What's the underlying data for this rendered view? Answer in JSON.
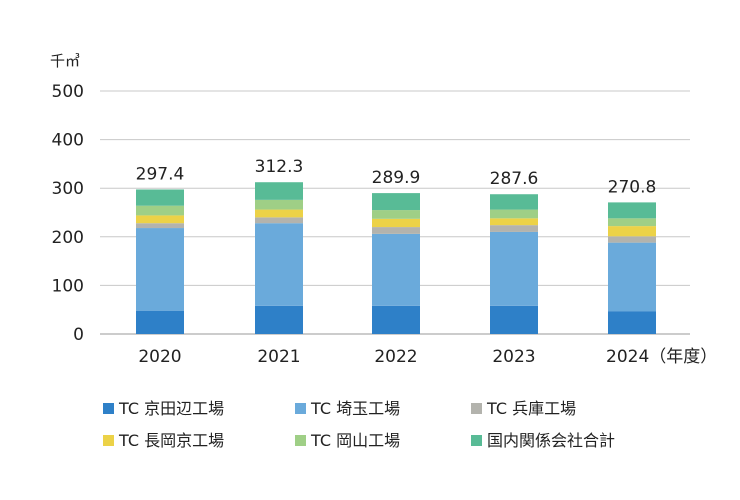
{
  "chart_data": {
    "type": "bar",
    "stacked": true,
    "unit_label": "千㎥",
    "categories": [
      "2020",
      "2021",
      "2022",
      "2023",
      "2024"
    ],
    "category_suffix_last": "（年度）",
    "ylim": [
      0,
      500
    ],
    "yticks": [
      0,
      100,
      200,
      300,
      400,
      500
    ],
    "grid": true,
    "legend_position": "bottom",
    "series": [
      {
        "name": "TC 京田辺工場",
        "color": "#2e80c8",
        "values": [
          48,
          58,
          58,
          58,
          47
        ]
      },
      {
        "name": "TC 埼玉工場",
        "color": "#6aaadb",
        "values": [
          170,
          170,
          148,
          152,
          141
        ]
      },
      {
        "name": "TC 兵庫工場",
        "color": "#b3b3ad",
        "values": [
          10,
          12,
          14,
          14,
          13
        ]
      },
      {
        "name": "TC 長岡京工場",
        "color": "#ecd247",
        "values": [
          16,
          16,
          17,
          14,
          21
        ]
      },
      {
        "name": "TC 岡山工場",
        "color": "#9fcf86",
        "values": [
          20,
          20,
          18,
          18,
          16
        ]
      },
      {
        "name": "国内関係会社合計",
        "color": "#58bb96",
        "values": [
          33.4,
          36.3,
          34.9,
          31.6,
          32.8
        ]
      }
    ],
    "totals": [
      "297.4",
      "312.3",
      "289.9",
      "287.6",
      "270.8"
    ]
  }
}
